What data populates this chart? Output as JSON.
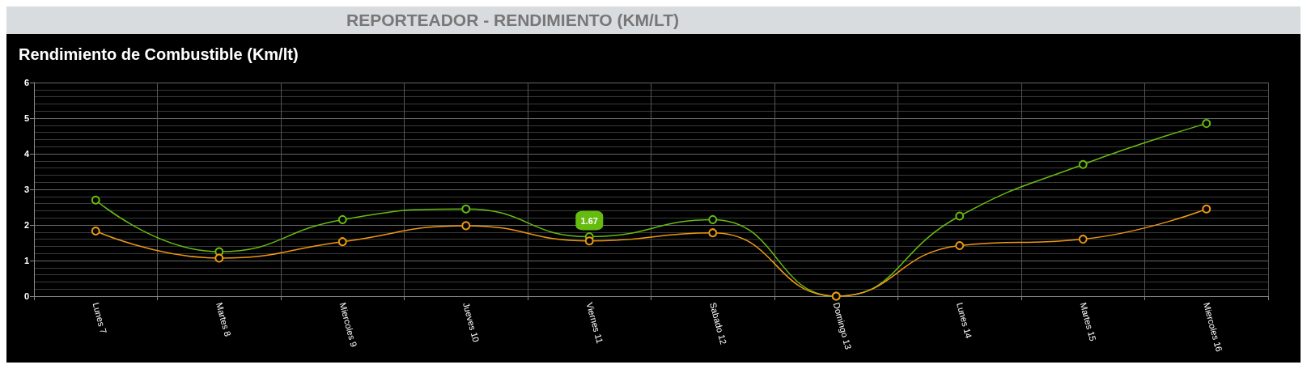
{
  "chart_data": {
    "type": "line",
    "title": "REPORTEADOR - RENDIMIENTO (KM/LT)",
    "subtitle": "Rendimiento de Combustible (Km/lt)",
    "categories": [
      "Lunes 7",
      "Martes 8",
      "Miercoles 9",
      "Jueves 10",
      "Viernes 11",
      "Sabado 12",
      "Domingo 13",
      "Lunes 14",
      "Martes 15",
      "Miercoles 16"
    ],
    "series": [
      {
        "color": "#66bb11",
        "values": [
          2.7,
          1.25,
          2.15,
          2.45,
          1.67,
          2.15,
          0,
          2.25,
          3.7,
          4.85
        ]
      },
      {
        "color": "#ee9911",
        "values": [
          1.83,
          1.07,
          1.53,
          1.98,
          1.55,
          1.78,
          0,
          1.42,
          1.6,
          2.45
        ]
      }
    ],
    "ylim": [
      0,
      6
    ],
    "yticks": [
      0,
      1,
      2,
      3,
      4,
      5,
      6
    ],
    "grid": true,
    "marker": "circle",
    "line_style": "solid",
    "annotations": [
      {
        "text": "1.67",
        "x": "Viernes 11",
        "y": 1.67
      }
    ]
  }
}
